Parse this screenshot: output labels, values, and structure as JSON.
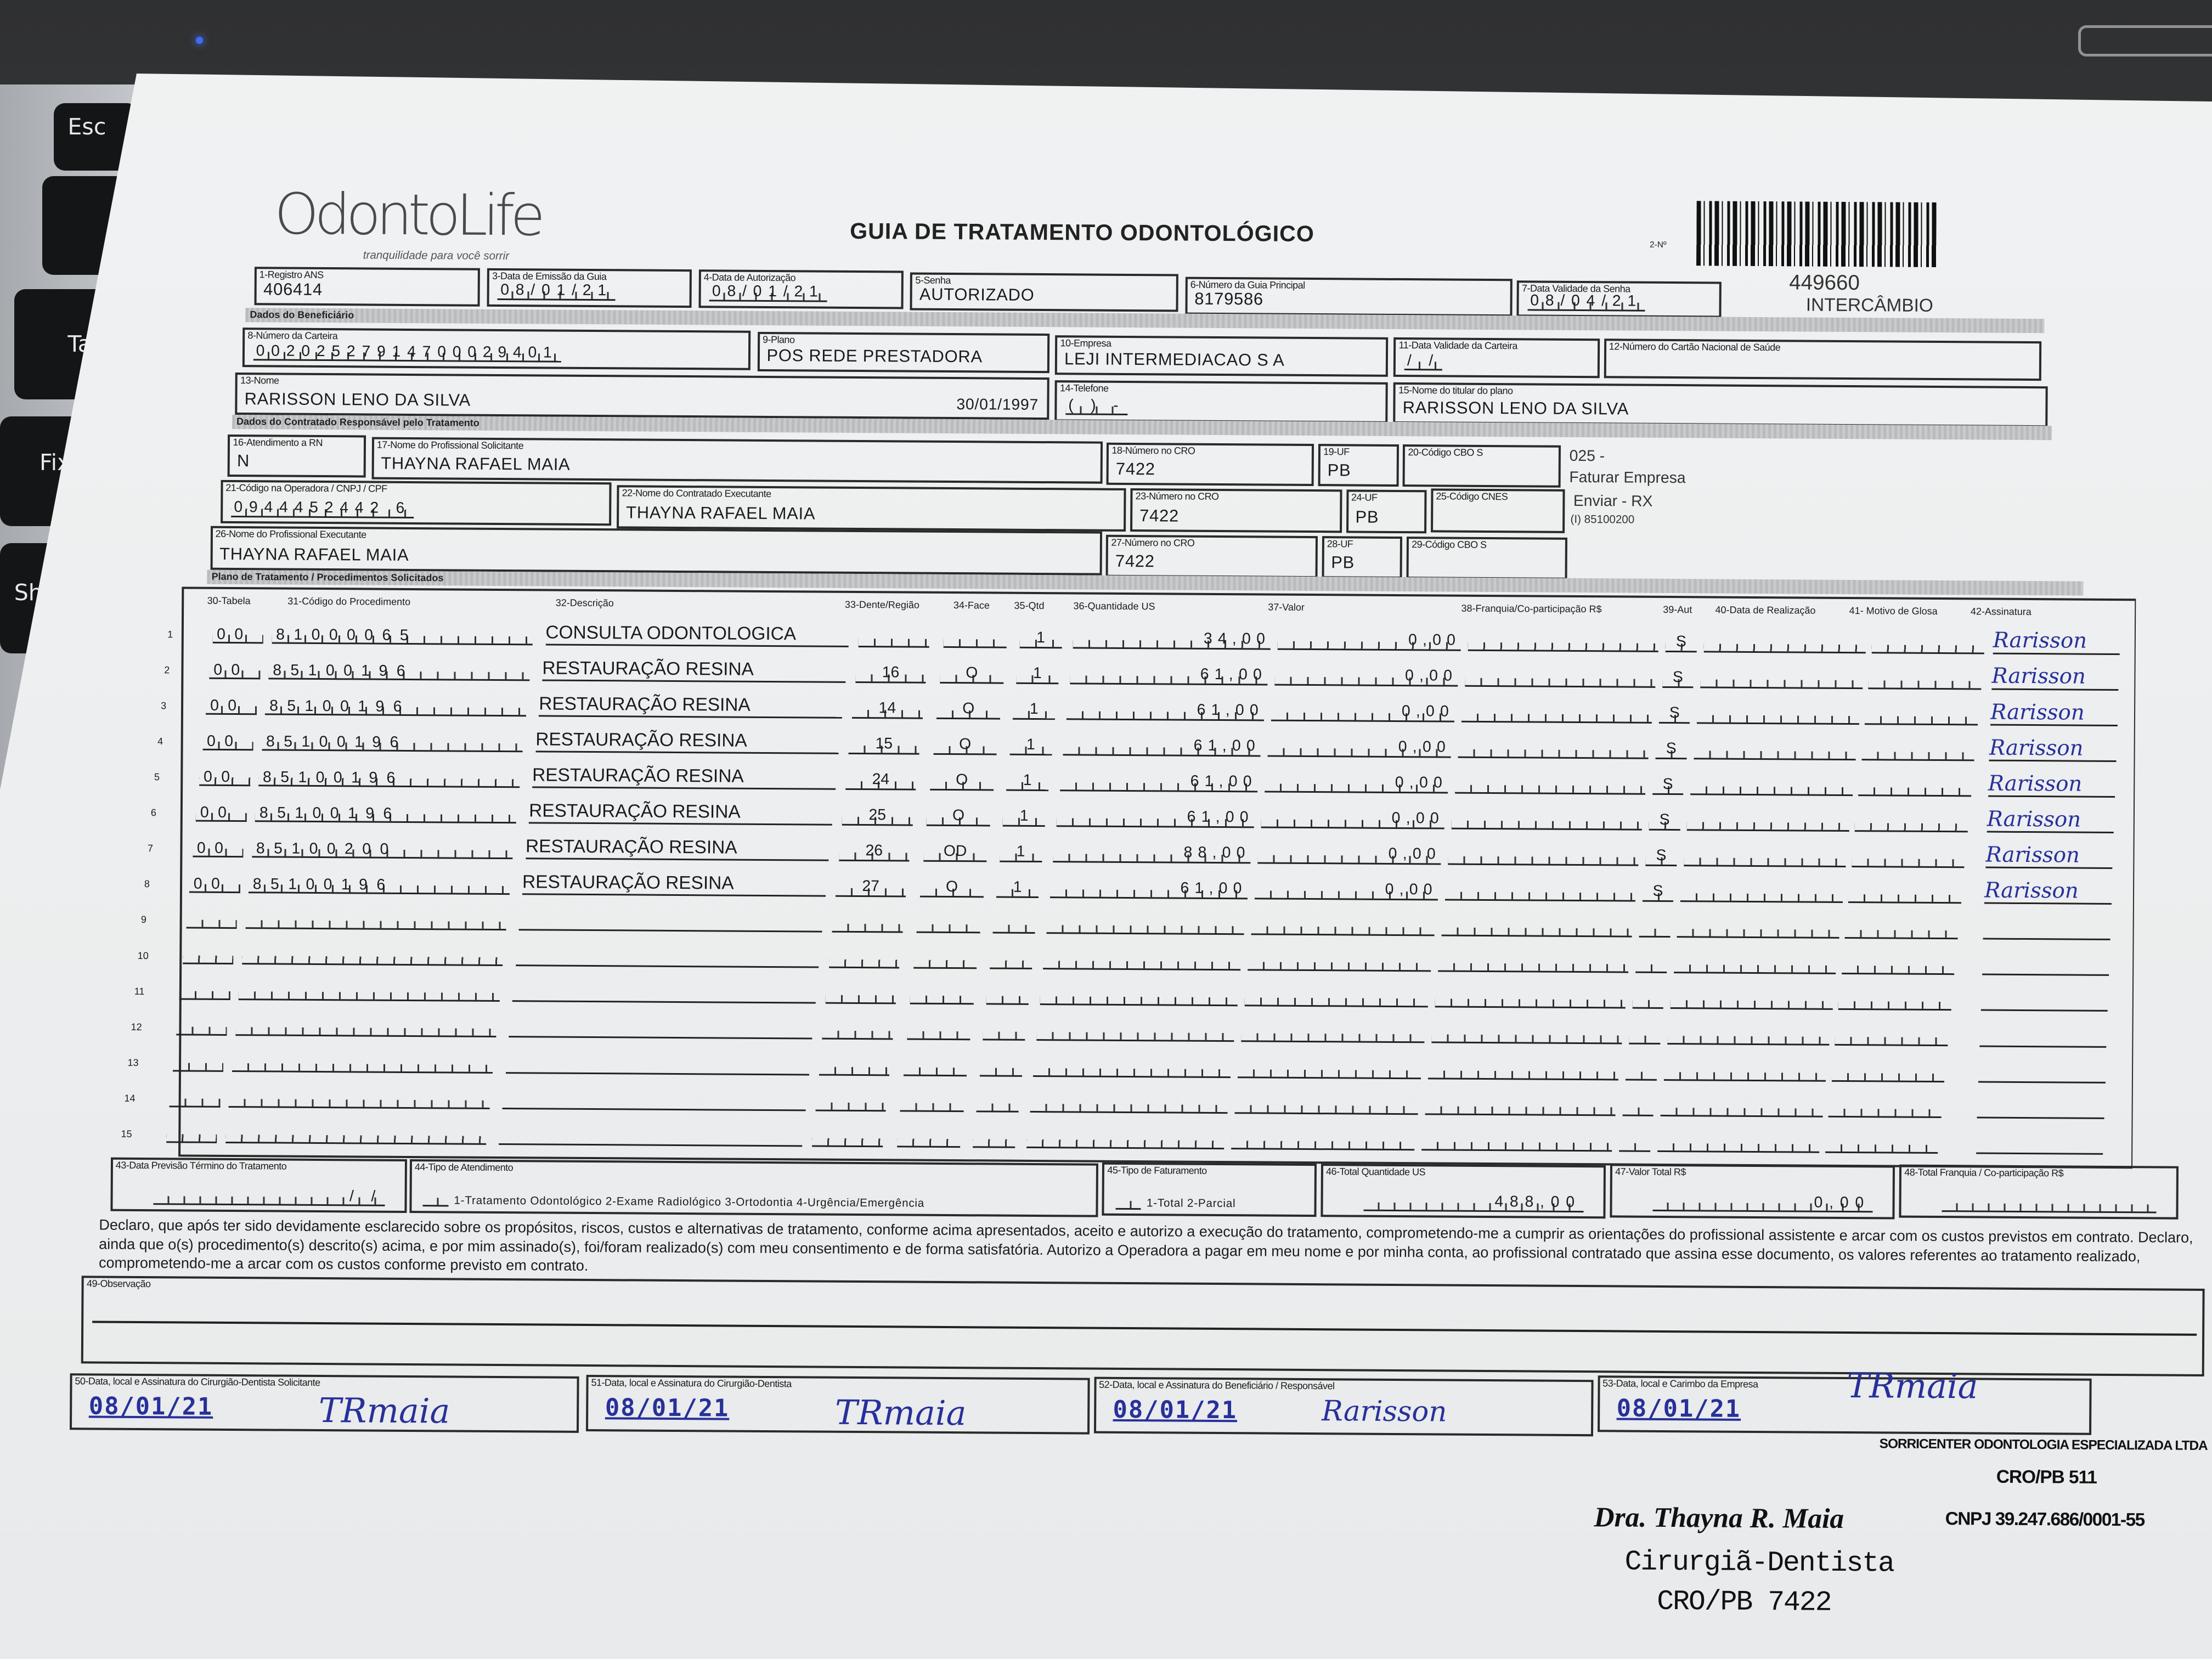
{
  "keyboard": {
    "keys": [
      "Esc",
      "Tab",
      "Fix",
      "Shi"
    ]
  },
  "header": {
    "logo": "OdontoLife",
    "tagline": "tranquilidade para você sorrir",
    "title": "GUIA DE TRATAMENTO ODONTOLÓGICO",
    "guide_number_label": "2-Nº",
    "guide_number": "449660",
    "exchange": "INTERCÂMBIO"
  },
  "sections": {
    "beneficiary": "Dados do Beneficiário",
    "contracted": "Dados do Contratado Responsável pelo Tratamento",
    "plan": "Plano de Tratamento / Procedimentos Solicitados"
  },
  "fields": {
    "f1": {
      "label": "1-Registro ANS",
      "value": "406414"
    },
    "f3": {
      "label": "3-Data de Emissão da Guia",
      "value": "08/01/21"
    },
    "f4": {
      "label": "4-Data de Autorização",
      "value": "08/01/21"
    },
    "f5": {
      "label": "5-Senha",
      "value": "AUTORIZADO"
    },
    "f6": {
      "label": "6-Número da Guia Principal",
      "value": "8179586"
    },
    "f7": {
      "label": "7-Data Validade da Senha",
      "value": "08/04/21"
    },
    "f8": {
      "label": "8-Número da Carteira",
      "value": "00202527914700029401"
    },
    "f9": {
      "label": "9-Plano",
      "value": "POS REDE PRESTADORA"
    },
    "f10": {
      "label": "10-Empresa",
      "value": "LEJI INTERMEDIACAO S A"
    },
    "f11": {
      "label": "11-Data Validade da Carteira",
      "value": "  /  /  "
    },
    "f12": {
      "label": "12-Número do Cartão Nacional de Saúde",
      "value": ""
    },
    "f13": {
      "label": "13-Nome",
      "value": "RARISSON LENO DA SILVA",
      "birth_date": "30/01/1997"
    },
    "f14": {
      "label": "14-Telefone",
      "value": "(  )     -    "
    },
    "f15": {
      "label": "15-Nome do titular do plano",
      "value": "RARISSON LENO DA SILVA"
    },
    "f16": {
      "label": "16-Atendimento a RN",
      "value": "N"
    },
    "f17": {
      "label": "17-Nome do Profissional Solicitante",
      "value": "THAYNA RAFAEL MAIA"
    },
    "f18": {
      "label": "18-Número no CRO",
      "value": "7422"
    },
    "f19": {
      "label": "19-UF",
      "value": "PB"
    },
    "f20": {
      "label": "20-Código CBO S",
      "value": ""
    },
    "f21": {
      "label": "21-Código na Operadora / CNPJ / CPF",
      "value": "0944452442 6"
    },
    "f22": {
      "label": "22-Nome do Contratado Executante",
      "value": "THAYNA RAFAEL MAIA"
    },
    "f23": {
      "label": "23-Número no CRO",
      "value": "7422"
    },
    "f24": {
      "label": "24-UF",
      "value": "PB"
    },
    "f25": {
      "label": "25-Código CNES",
      "value": ""
    },
    "f26": {
      "label": "26-Nome do Profissional Executante",
      "value": "THAYNA RAFAEL MAIA"
    },
    "f27": {
      "label": "27-Número no CRO",
      "value": "7422"
    },
    "f28": {
      "label": "28-UF",
      "value": "PB"
    },
    "f29": {
      "label": "29-Código CBO S",
      "value": ""
    }
  },
  "notes": [
    "025 -",
    "Faturar Empresa",
    "Enviar - RX",
    "(I) 85100200"
  ],
  "table": {
    "headers": [
      "30-Tabela",
      "31-Código do Procedimento",
      "32-Descrição",
      "33-Dente/Região",
      "34-Face",
      "35-Qtd",
      "36-Quantidade US",
      "37-Valor",
      "38-Franquia/Co-participação R$",
      "39-Aut",
      "40-Data de Realização",
      "41- Motivo de Glosa",
      "42-Assinatura"
    ],
    "rows": [
      {
        "n": "1",
        "tabela": "00",
        "codigo": "81000065",
        "descricao": "CONSULTA ODONTOLOGICA",
        "dente": "",
        "face": "",
        "qtd": "1",
        "qtd_us": "34,00",
        "valor": "0,00",
        "aut": "S",
        "assinatura": "Rarisson"
      },
      {
        "n": "2",
        "tabela": "00",
        "codigo": "85100196",
        "descricao": "RESTAURAÇÃO RESINA",
        "dente": "16",
        "face": "O",
        "qtd": "1",
        "qtd_us": "61,00",
        "valor": "0,00",
        "aut": "S",
        "assinatura": "Rarisson"
      },
      {
        "n": "3",
        "tabela": "00",
        "codigo": "85100196",
        "descricao": "RESTAURAÇÃO RESINA",
        "dente": "14",
        "face": "O",
        "qtd": "1",
        "qtd_us": "61,00",
        "valor": "0,00",
        "aut": "S",
        "assinatura": "Rarisson"
      },
      {
        "n": "4",
        "tabela": "00",
        "codigo": "85100196",
        "descricao": "RESTAURAÇÃO RESINA",
        "dente": "15",
        "face": "O",
        "qtd": "1",
        "qtd_us": "61,00",
        "valor": "0,00",
        "aut": "S",
        "assinatura": "Rarisson"
      },
      {
        "n": "5",
        "tabela": "00",
        "codigo": "85100196",
        "descricao": "RESTAURAÇÃO RESINA",
        "dente": "24",
        "face": "O",
        "qtd": "1",
        "qtd_us": "61,00",
        "valor": "0,00",
        "aut": "S",
        "assinatura": "Rarisson"
      },
      {
        "n": "6",
        "tabela": "00",
        "codigo": "85100196",
        "descricao": "RESTAURAÇÃO RESINA",
        "dente": "25",
        "face": "O",
        "qtd": "1",
        "qtd_us": "61,00",
        "valor": "0,00",
        "aut": "S",
        "assinatura": "Rarisson"
      },
      {
        "n": "7",
        "tabela": "00",
        "codigo": "85100200",
        "descricao": "RESTAURAÇÃO RESINA",
        "dente": "26",
        "face": "OD",
        "qtd": "1",
        "qtd_us": "88,00",
        "valor": "0,00",
        "aut": "S",
        "assinatura": "Rarisson"
      },
      {
        "n": "8",
        "tabela": "00",
        "codigo": "85100196",
        "descricao": "RESTAURAÇÃO RESINA",
        "dente": "27",
        "face": "O",
        "qtd": "1",
        "qtd_us": "61,00",
        "valor": "0,00",
        "aut": "S",
        "assinatura": "Rarisson"
      },
      {
        "n": "9"
      },
      {
        "n": "10"
      },
      {
        "n": "11"
      },
      {
        "n": "12"
      },
      {
        "n": "13"
      },
      {
        "n": "14"
      },
      {
        "n": "15"
      }
    ]
  },
  "totals": {
    "f43": {
      "label": "43-Data Previsão Término do Tratamento",
      "value": "  /  /  "
    },
    "f44": {
      "label": "44-Tipo de Atendimento",
      "options": "1-Tratamento Odontológico  2-Exame Radiológico  3-Ortodontia  4-Urgência/Emergência"
    },
    "f45": {
      "label": "45-Tipo de Faturamento",
      "options": "1-Total  2-Parcial"
    },
    "f46": {
      "label": "46-Total Quantidade US",
      "value": "488,00"
    },
    "f47": {
      "label": "47-Valor Total R$",
      "value": "0,00"
    },
    "f48": {
      "label": "48-Total Franquia / Co-participação R$",
      "value": ""
    }
  },
  "declaration": "Declaro, que após ter sido devidamente esclarecido sobre os propósitos, riscos, custos e alternativas de tratamento, conforme acima apresentados, aceito e autorizo a execução do tratamento, comprometendo-me a cumprir as orientações do profissional assistente e arcar com os custos previstos em contrato. Declaro, ainda que o(s) procedimento(s) descrito(s) acima, e por mim assinado(s), foi/foram realizado(s) com meu consentimento e de forma satisfatória. Autorizo a Operadora a pagar em meu nome e por minha conta, ao profissional contratado que assina esse documento, os valores referentes ao tratamento realizado, comprometendo-me a arcar com os custos conforme previsto em contrato.",
  "observation": {
    "label": "49-Observação",
    "value": ""
  },
  "signatures": [
    {
      "label": "50-Data, local e Assinatura do Cirurgião-Dentista Solicitante",
      "date": "08/01/21",
      "signature": "TRmaia"
    },
    {
      "label": "51-Data, local e Assinatura do Cirurgião-Dentista",
      "date": "08/01/21",
      "signature": "TRmaia"
    },
    {
      "label": "52-Data, local e Assinatura do Beneficiário / Responsável",
      "date": "08/01/21",
      "signature": "Rarisson"
    },
    {
      "label": "53-Data, local e Carimbo da Empresa",
      "date": "08/01/21",
      "signature": "TRmaia"
    }
  ],
  "stamps": {
    "company": "SORRICENTER ODONTOLOGIA ESPECIALIZADA LTDA",
    "company_cro": "CRO/PB 511",
    "company_cnpj": "CNPJ 39.247.686/0001-55",
    "dentist_name": "Dra. Thayna R. Maia",
    "dentist_title": "Cirurgiã-Dentista",
    "dentist_cro": "CRO/PB 7422"
  },
  "colors": {
    "ink_blue": "#27309a",
    "paper": "#eceeef",
    "print": "#1b1b1b"
  }
}
